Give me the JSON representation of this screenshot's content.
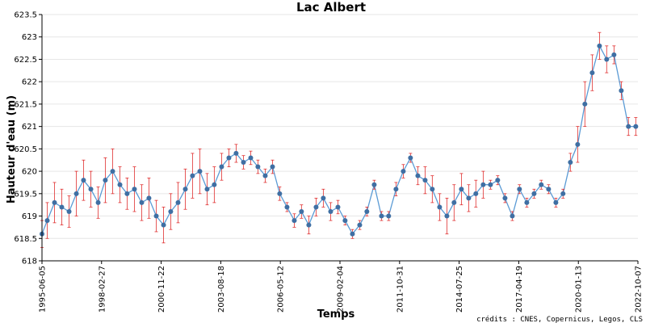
{
  "chart_data": {
    "type": "line",
    "title": "Lac Albert",
    "xlabel": "Temps",
    "ylabel": "Hauteur d'eau (m)",
    "credits": "crédits : CNES, Copernicus, Legos, CLS",
    "xlim": [
      "1995-06-05",
      "2022-10-07"
    ],
    "ylim": [
      618,
      623.5
    ],
    "x_ticks": [
      "1995-06-05",
      "1998-02-27",
      "2000-11-22",
      "2003-08-18",
      "2006-05-12",
      "2009-02-04",
      "2011-10-31",
      "2014-07-25",
      "2017-04-19",
      "2020-01-13",
      "2022-10-07"
    ],
    "y_ticks": [
      "618",
      "618.5",
      "619",
      "619.5",
      "620",
      "620.5",
      "621",
      "621.5",
      "622",
      "622.5",
      "623",
      "623.5"
    ],
    "grid": true,
    "colors": {
      "line": "#5b9bd5",
      "marker": "#3f6fa3",
      "error": "#e03030"
    },
    "series": [
      {
        "x": [
          "1995-06-05",
          "1995-09-01",
          "1996-01-01",
          "1996-05-01",
          "1996-09-01",
          "1997-01-01",
          "1997-05-01",
          "1997-09-01",
          "1998-01-01",
          "1998-05-01",
          "1998-09-01",
          "1999-01-01",
          "1999-05-01",
          "1999-09-01",
          "2000-01-01",
          "2000-05-01",
          "2000-09-01",
          "2001-01-01",
          "2001-05-01",
          "2001-09-01",
          "2002-01-01",
          "2002-05-01",
          "2002-09-01",
          "2003-01-01",
          "2003-05-01",
          "2003-09-01",
          "2004-01-01",
          "2004-05-01",
          "2004-09-01",
          "2005-01-01",
          "2005-05-01",
          "2005-09-01",
          "2006-01-01",
          "2006-05-01",
          "2006-09-01",
          "2007-01-01",
          "2007-05-01",
          "2007-09-01",
          "2008-01-01",
          "2008-05-01",
          "2008-09-01",
          "2009-01-01",
          "2009-05-01",
          "2009-09-01",
          "2010-01-01",
          "2010-05-01",
          "2010-09-01",
          "2011-01-01",
          "2011-05-01",
          "2011-09-01",
          "2012-01-01",
          "2012-05-01",
          "2012-09-01",
          "2013-01-01",
          "2013-05-01",
          "2013-09-01",
          "2014-01-01",
          "2014-05-01",
          "2014-09-01",
          "2015-01-01",
          "2015-05-01",
          "2015-09-01",
          "2016-01-01",
          "2016-05-01",
          "2016-09-01",
          "2017-01-01",
          "2017-05-01",
          "2017-09-01",
          "2018-01-01",
          "2018-05-01",
          "2018-09-01",
          "2019-01-01",
          "2019-05-01",
          "2019-09-01",
          "2020-01-01",
          "2020-05-01",
          "2020-09-01",
          "2021-01-01",
          "2021-05-01",
          "2021-09-01",
          "2022-01-01",
          "2022-05-01",
          "2022-09-01"
        ],
        "y": [
          618.6,
          618.9,
          619.3,
          619.2,
          619.1,
          619.5,
          619.8,
          619.6,
          619.3,
          619.8,
          620.0,
          619.7,
          619.5,
          619.6,
          619.3,
          619.4,
          619.0,
          618.8,
          619.1,
          619.3,
          619.6,
          619.9,
          620.0,
          619.6,
          619.7,
          620.1,
          620.3,
          620.4,
          620.2,
          620.3,
          620.1,
          619.9,
          620.1,
          619.5,
          619.2,
          618.9,
          619.1,
          618.8,
          619.2,
          619.4,
          619.1,
          619.2,
          618.9,
          618.6,
          618.8,
          619.1,
          619.7,
          619.0,
          619.0,
          619.6,
          620.0,
          620.3,
          619.9,
          619.8,
          619.6,
          619.2,
          619.0,
          619.3,
          619.6,
          619.4,
          619.5,
          619.7,
          619.7,
          619.8,
          619.4,
          619.0,
          619.6,
          619.3,
          619.5,
          619.7,
          619.6,
          619.3,
          619.5,
          620.2,
          620.6,
          621.5,
          622.2,
          622.8,
          622.5,
          622.6,
          621.8,
          621.0,
          621.0
        ],
        "err": [
          0.3,
          0.4,
          0.45,
          0.4,
          0.35,
          0.5,
          0.45,
          0.4,
          0.35,
          0.5,
          0.5,
          0.4,
          0.35,
          0.5,
          0.4,
          0.45,
          0.35,
          0.4,
          0.4,
          0.45,
          0.45,
          0.5,
          0.5,
          0.35,
          0.4,
          0.3,
          0.2,
          0.2,
          0.15,
          0.15,
          0.15,
          0.15,
          0.15,
          0.15,
          0.1,
          0.15,
          0.15,
          0.2,
          0.2,
          0.2,
          0.2,
          0.15,
          0.1,
          0.1,
          0.1,
          0.1,
          0.1,
          0.1,
          0.1,
          0.15,
          0.15,
          0.1,
          0.2,
          0.3,
          0.3,
          0.3,
          0.4,
          0.4,
          0.35,
          0.3,
          0.3,
          0.3,
          0.1,
          0.1,
          0.1,
          0.1,
          0.1,
          0.1,
          0.1,
          0.1,
          0.1,
          0.1,
          0.1,
          0.2,
          0.4,
          0.5,
          0.4,
          0.3,
          0.3,
          0.2,
          0.2,
          0.2,
          0.2
        ]
      }
    ]
  }
}
